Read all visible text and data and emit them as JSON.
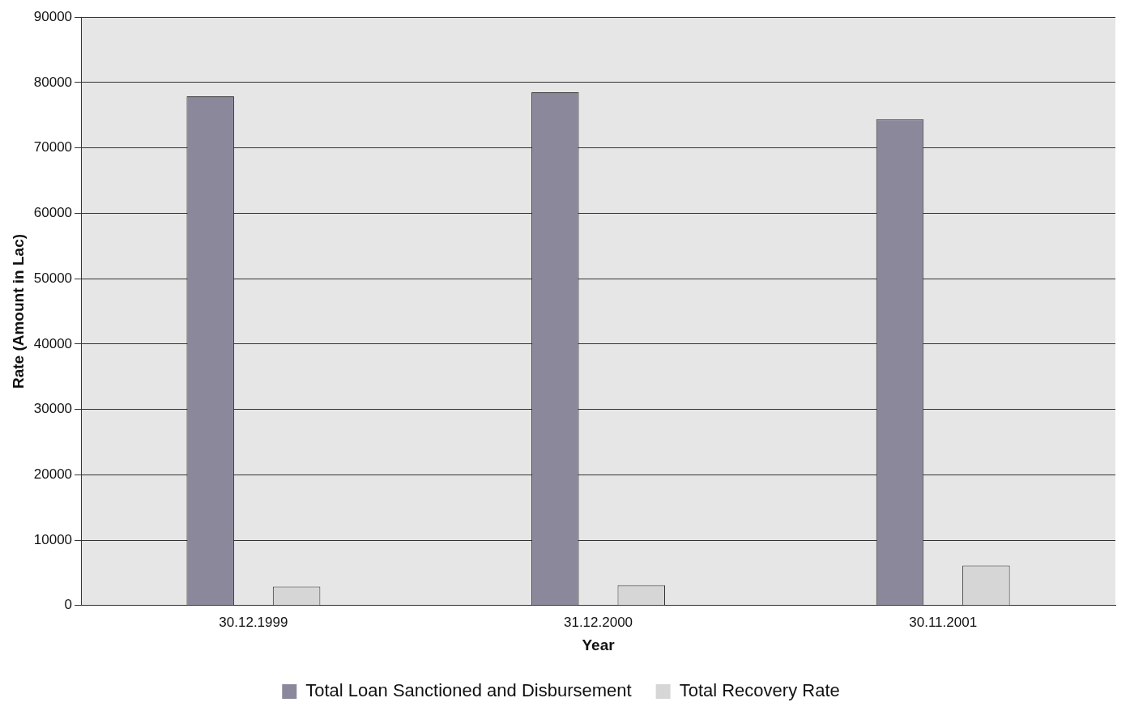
{
  "chart_data": {
    "type": "bar",
    "xlabel": "Year",
    "ylabel": "Rate (Amount in Lac)",
    "categories": [
      "30.12.1999",
      "31.12.2000",
      "30.11.2001"
    ],
    "series": [
      {
        "name": "Total Loan Sanctioned and Disbursement",
        "color": "#8c889c",
        "values": [
          77900,
          78500,
          74400
        ]
      },
      {
        "name": "Total Recovery Rate",
        "color": "#d6d6d6",
        "values": [
          2900,
          3100,
          6100
        ]
      }
    ],
    "ylim": [
      0,
      90000
    ],
    "yticks": [
      0,
      10000,
      20000,
      30000,
      40000,
      50000,
      60000,
      70000,
      80000,
      90000
    ],
    "grid": "y",
    "legend": "bottom"
  }
}
